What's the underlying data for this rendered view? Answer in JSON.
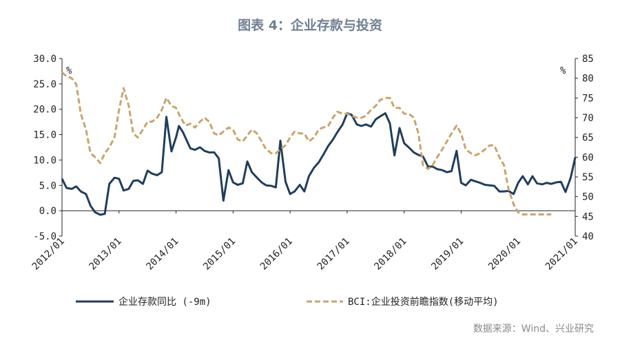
{
  "title": "图表 4：企业存款与投资",
  "source": "数据来源：Wind、兴业研究",
  "chart_data": {
    "type": "line",
    "x_ticks": [
      "2012/01",
      "2013/01",
      "2014/01",
      "2015/01",
      "2016/01",
      "2017/01",
      "2018/01",
      "2019/01",
      "2020/01",
      "2021/01"
    ],
    "x_range": [
      2012.0,
      2021.0
    ],
    "left_axis": {
      "unit": "%",
      "ylim": [
        -5,
        30
      ],
      "ticks": [
        "-5.0",
        "0.0",
        "5.0",
        "10.0",
        "15.0",
        "20.0",
        "25.0",
        "30.0"
      ]
    },
    "right_axis": {
      "unit": "%",
      "ylim": [
        40,
        85
      ],
      "ticks": [
        "40",
        "45",
        "50",
        "55",
        "60",
        "65",
        "70",
        "75",
        "80",
        "85"
      ]
    },
    "grid": false,
    "legend_position": "bottom",
    "series": [
      {
        "name": "企业存款同比 (-9m)",
        "axis": "left",
        "style": "solid",
        "color": "#1f3d5c",
        "x": [
          2012.0,
          2012.08,
          2012.17,
          2012.25,
          2012.33,
          2012.42,
          2012.5,
          2012.58,
          2012.67,
          2012.75,
          2012.83,
          2012.92,
          2013.0,
          2013.08,
          2013.17,
          2013.25,
          2013.33,
          2013.42,
          2013.5,
          2013.58,
          2013.67,
          2013.75,
          2013.83,
          2013.92,
          2014.0,
          2014.05,
          2014.12,
          2014.25,
          2014.33,
          2014.42,
          2014.5,
          2014.58,
          2014.67,
          2014.75,
          2014.83,
          2014.92,
          2015.0,
          2015.08,
          2015.17,
          2015.25,
          2015.33,
          2015.42,
          2015.5,
          2015.58,
          2015.67,
          2015.75,
          2015.83,
          2015.92,
          2016.0,
          2016.08,
          2016.17,
          2016.25,
          2016.33,
          2016.42,
          2016.5,
          2016.58,
          2016.67,
          2016.75,
          2016.83,
          2016.92,
          2017.0,
          2017.08,
          2017.17,
          2017.25,
          2017.33,
          2017.42,
          2017.5,
          2017.58,
          2017.67,
          2017.75,
          2017.83,
          2017.92,
          2018.0,
          2018.08,
          2018.17,
          2018.25,
          2018.33,
          2018.42,
          2018.5,
          2018.58,
          2018.67,
          2018.75,
          2018.83,
          2018.92,
          2019.0,
          2019.08,
          2019.17,
          2019.25,
          2019.33,
          2019.42,
          2019.5,
          2019.58,
          2019.67,
          2019.75,
          2019.83,
          2019.92,
          2020.0,
          2020.08,
          2020.17,
          2020.25,
          2020.33,
          2020.42,
          2020.5,
          2020.58,
          2020.67,
          2020.75,
          2020.83,
          2020.92,
          2021.0
        ],
        "values": [
          6.3,
          4.5,
          4.3,
          4.8,
          3.8,
          3.3,
          1.0,
          -0.3,
          -0.8,
          -0.6,
          5.3,
          6.5,
          6.3,
          4.0,
          4.3,
          5.9,
          6.0,
          5.3,
          7.9,
          7.3,
          7.0,
          7.6,
          18.5,
          11.7,
          14.5,
          16.7,
          15.5,
          12.3,
          12.0,
          12.5,
          11.8,
          11.5,
          11.5,
          10.3,
          2.0,
          8.0,
          5.6,
          5.1,
          5.4,
          9.7,
          7.6,
          6.5,
          5.6,
          5.0,
          4.9,
          4.6,
          13.8,
          5.7,
          3.3,
          3.8,
          5.1,
          3.8,
          6.8,
          8.5,
          9.5,
          11.0,
          12.8,
          14.0,
          15.5,
          17.0,
          19.2,
          18.9,
          17.0,
          16.7,
          17.0,
          16.6,
          18.0,
          18.6,
          19.2,
          17.2,
          10.9,
          16.3,
          13.3,
          12.5,
          11.5,
          11.0,
          10.7,
          8.7,
          8.7,
          8.2,
          8.0,
          7.6,
          7.8,
          11.8,
          5.5,
          5.0,
          6.1,
          5.8,
          5.5,
          5.1,
          5.0,
          4.9,
          3.8,
          3.8,
          3.9,
          3.3,
          5.5,
          6.8,
          5.2,
          6.8,
          5.4,
          5.2,
          5.5,
          5.3,
          5.6,
          5.7,
          3.7,
          6.5,
          10.5
        ]
      },
      {
        "name": "BCI:企业投资前瞻指数(移动平均)",
        "axis": "right",
        "style": "dashed",
        "color": "#c9a46a",
        "x": [
          2012.0,
          2012.08,
          2012.17,
          2012.25,
          2012.33,
          2012.42,
          2012.5,
          2012.58,
          2012.67,
          2012.75,
          2012.83,
          2012.92,
          2013.0,
          2013.08,
          2013.17,
          2013.25,
          2013.33,
          2013.42,
          2013.5,
          2013.58,
          2013.67,
          2013.75,
          2013.83,
          2013.92,
          2014.0,
          2014.08,
          2014.17,
          2014.25,
          2014.33,
          2014.42,
          2014.5,
          2014.58,
          2014.67,
          2014.75,
          2014.83,
          2014.92,
          2015.0,
          2015.08,
          2015.17,
          2015.25,
          2015.33,
          2015.42,
          2015.5,
          2015.58,
          2015.67,
          2015.75,
          2015.83,
          2015.92,
          2016.0,
          2016.08,
          2016.17,
          2016.25,
          2016.33,
          2016.42,
          2016.5,
          2016.58,
          2016.67,
          2016.75,
          2016.83,
          2016.92,
          2017.0,
          2017.08,
          2017.17,
          2017.25,
          2017.33,
          2017.42,
          2017.5,
          2017.58,
          2017.67,
          2017.75,
          2017.83,
          2017.92,
          2018.0,
          2018.08,
          2018.17,
          2018.25,
          2018.33,
          2018.42,
          2018.5,
          2018.58,
          2018.67,
          2018.75,
          2018.83,
          2018.92,
          2019.0,
          2019.08,
          2019.17,
          2019.25,
          2019.33,
          2019.42,
          2019.5,
          2019.58,
          2019.67,
          2019.75,
          2019.83,
          2019.92,
          2020.0,
          2020.08,
          2020.17,
          2020.25,
          2020.33,
          2020.42,
          2020.5,
          2020.58
        ],
        "values": [
          81.5,
          80.5,
          80.0,
          78.5,
          71.0,
          67.0,
          61.0,
          60.0,
          58.5,
          61.0,
          62.5,
          65.0,
          72.0,
          77.5,
          73.0,
          66.0,
          65.0,
          67.0,
          69.0,
          69.0,
          70.0,
          72.0,
          75.0,
          73.0,
          72.5,
          70.0,
          68.0,
          68.5,
          67.5,
          69.0,
          70.0,
          69.0,
          66.0,
          65.5,
          66.5,
          67.5,
          67.0,
          64.5,
          64.0,
          65.5,
          67.0,
          66.0,
          64.0,
          62.0,
          61.0,
          61.0,
          62.0,
          63.0,
          65.0,
          66.5,
          66.0,
          66.0,
          64.0,
          65.0,
          67.0,
          67.5,
          68.0,
          70.0,
          71.5,
          71.0,
          71.0,
          70.5,
          70.0,
          70.0,
          70.5,
          72.0,
          73.0,
          74.5,
          75.0,
          75.0,
          72.5,
          72.5,
          71.0,
          71.0,
          70.0,
          66.0,
          58.0,
          57.0,
          58.0,
          60.0,
          62.0,
          64.0,
          66.0,
          68.0,
          66.0,
          62.0,
          61.0,
          60.5,
          61.0,
          62.0,
          63.0,
          63.0,
          60.0,
          58.0,
          52.0,
          48.0,
          46.0,
          45.5,
          45.5,
          45.5,
          45.5,
          45.5,
          45.5,
          45.5
        ]
      }
    ]
  },
  "legend": {
    "item1": "企业存款同比 (-9m)",
    "item2": "BCI:企业投资前瞻指数(移动平均)"
  }
}
